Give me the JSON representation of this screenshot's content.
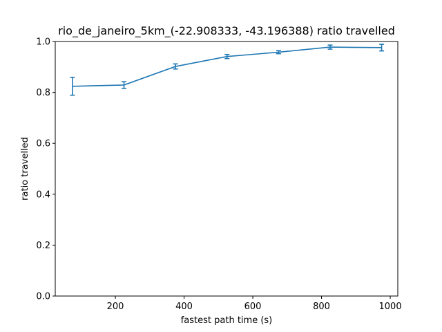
{
  "chart_data": {
    "type": "line",
    "title": "rio_de_janeiro_5km_(-22.908333, -43.196388) ratio travelled",
    "xlabel": "fastest path time (s)",
    "ylabel": "ratio travelled",
    "xlim": [
      25,
      1022
    ],
    "ylim": [
      0.0,
      1.0
    ],
    "xticks": [
      200,
      400,
      600,
      800,
      1000
    ],
    "yticks": [
      0.0,
      0.2,
      0.4,
      0.6,
      0.8,
      1.0
    ],
    "xtick_labels": [
      "200",
      "400",
      "600",
      "800",
      "1000"
    ],
    "ytick_labels": [
      "0.0",
      "0.2",
      "0.4",
      "0.6",
      "0.8",
      "1.0"
    ],
    "grid": false,
    "series": [
      {
        "name": "ratio travelled",
        "color": "#1f77b4",
        "x": [
          75,
          225,
          375,
          525,
          675,
          825,
          975
        ],
        "y": [
          0.824,
          0.829,
          0.902,
          0.941,
          0.958,
          0.978,
          0.976
        ],
        "yerr": [
          0.035,
          0.013,
          0.01,
          0.008,
          0.006,
          0.008,
          0.013
        ]
      }
    ]
  }
}
